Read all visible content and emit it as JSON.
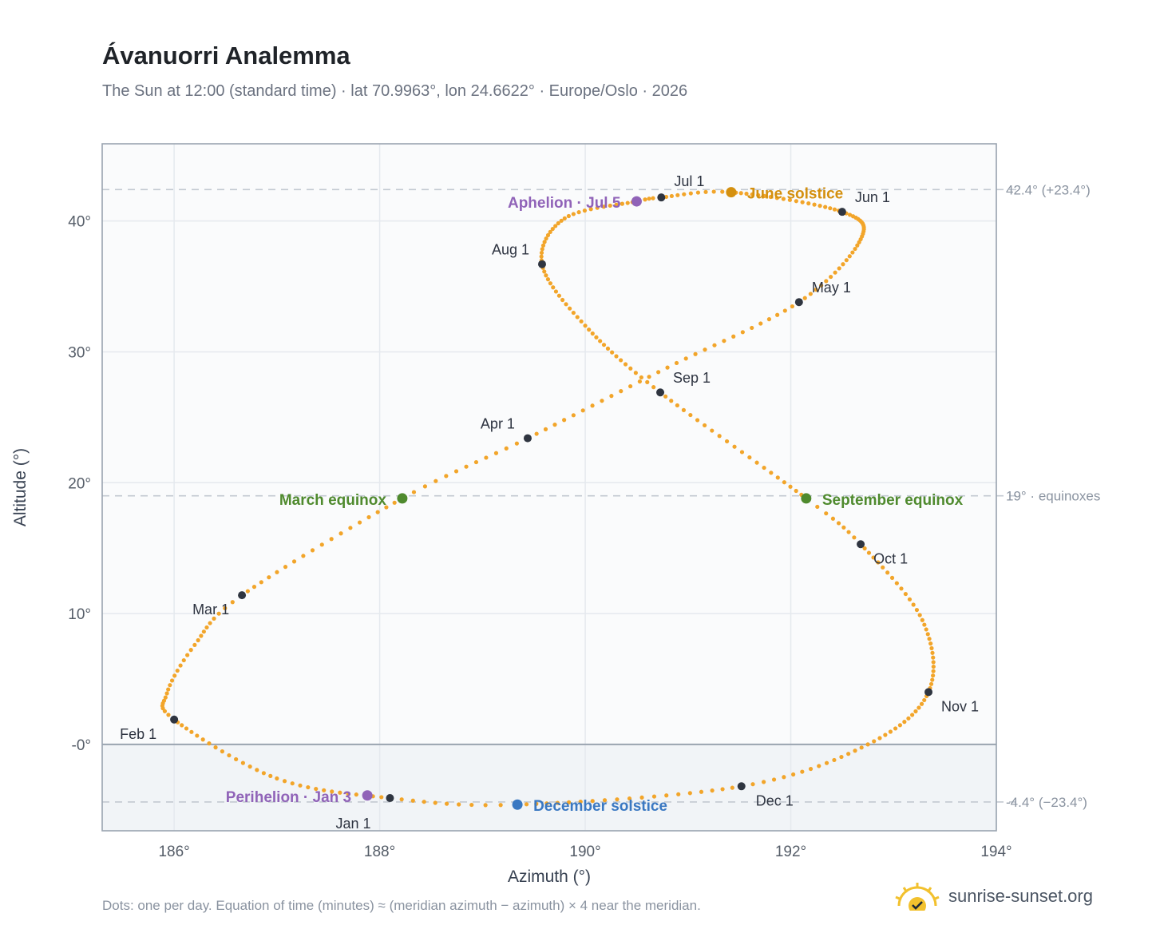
{
  "header": {
    "title": "Ávanuorri Analemma",
    "subtitle": "The Sun at 12:00 (standard time) · lat 70.9963°, lon 24.6622° · Europe/Oslo · 2026"
  },
  "footer": {
    "note": "Dots: one per day. Equation of time (minutes) ≈ (meridian azimuth − azimuth) × 4 near the meridian.",
    "brand": "sunrise-sunset.org"
  },
  "colors": {
    "path": "#f2a52a",
    "month_marker": "#2f3540",
    "solstice_june": "#d4900f",
    "solstice_december": "#3a78c2",
    "equinox": "#4f8a2e",
    "apsis": "#9063b8",
    "grid": "#e5e9ee",
    "frame": "#9aa4b0",
    "below_horizon_fill": "#f1f4f7",
    "plot_bg": "#fafbfc"
  },
  "chart_data": {
    "type": "scatter",
    "x_label": "Azimuth (°)",
    "y_label": "Altitude (°)",
    "xlim": [
      185.3,
      194
    ],
    "ylim": [
      -6.6,
      45.9
    ],
    "x_ticks": [
      186,
      188,
      190,
      192,
      194
    ],
    "x_tick_labels": [
      "186°",
      "188°",
      "190°",
      "192°",
      "194°"
    ],
    "y_ticks": [
      0,
      10,
      20,
      30,
      40
    ],
    "y_tick_labels": [
      "-0°",
      "10°",
      "20°",
      "30°",
      "40°"
    ],
    "grid": true,
    "horizon_altitude": 0,
    "reference_lines": [
      {
        "y": 42.4,
        "label": "42.4° (+23.4°)"
      },
      {
        "y": 19.0,
        "label": "19° · equinoxes"
      },
      {
        "y": -4.4,
        "label": "-4.4° (−23.4°)"
      }
    ],
    "month_markers": [
      {
        "label": "Jan 1",
        "az": 188.1,
        "alt": -4.1
      },
      {
        "label": "Feb 1",
        "az": 186.0,
        "alt": 1.9
      },
      {
        "label": "Mar 1",
        "az": 186.66,
        "alt": 11.4
      },
      {
        "label": "Apr 1",
        "az": 189.44,
        "alt": 23.4
      },
      {
        "label": "May 1",
        "az": 192.08,
        "alt": 33.8
      },
      {
        "label": "Jun 1",
        "az": 192.5,
        "alt": 40.7
      },
      {
        "label": "Jul 1",
        "az": 190.74,
        "alt": 41.8
      },
      {
        "label": "Aug 1",
        "az": 189.58,
        "alt": 36.7
      },
      {
        "label": "Sep 1",
        "az": 190.73,
        "alt": 26.9
      },
      {
        "label": "Oct 1",
        "az": 192.68,
        "alt": 15.3
      },
      {
        "label": "Nov 1",
        "az": 193.34,
        "alt": 4.0
      },
      {
        "label": "Dec 1",
        "az": 191.52,
        "alt": -3.2
      }
    ],
    "events": [
      {
        "label": "Perihelion · Jan 3",
        "az": 187.88,
        "alt": -3.9,
        "kind": "apsis"
      },
      {
        "label": "March equinox",
        "az": 188.22,
        "alt": 18.8,
        "kind": "equinox"
      },
      {
        "label": "June solstice",
        "az": 191.42,
        "alt": 42.2,
        "kind": "solstice_june"
      },
      {
        "label": "Aphelion · Jul 5",
        "az": 190.5,
        "alt": 41.5,
        "kind": "apsis"
      },
      {
        "label": "September equinox",
        "az": 192.15,
        "alt": 18.8,
        "kind": "equinox"
      },
      {
        "label": "December solstice",
        "az": 189.34,
        "alt": -4.6,
        "kind": "solstice_december"
      }
    ],
    "path_knots": [
      [
        1,
        188.1,
        -4.1
      ],
      [
        15,
        187.0,
        -2.6
      ],
      [
        32,
        186.0,
        1.9
      ],
      [
        40,
        185.93,
        3.9
      ],
      [
        50,
        186.2,
        7.6
      ],
      [
        60,
        186.66,
        11.4
      ],
      [
        79,
        188.22,
        18.8
      ],
      [
        91,
        189.44,
        23.4
      ],
      [
        106,
        190.8,
        28.8
      ],
      [
        121,
        192.08,
        33.8
      ],
      [
        137,
        192.68,
        38.6
      ],
      [
        152,
        192.5,
        40.7
      ],
      [
        172,
        191.42,
        42.2
      ],
      [
        182,
        190.74,
        41.8
      ],
      [
        186,
        190.5,
        41.5
      ],
      [
        199,
        189.8,
        40.2
      ],
      [
        213,
        189.58,
        36.7
      ],
      [
        228,
        190.0,
        32.0
      ],
      [
        244,
        190.73,
        26.9
      ],
      [
        266,
        192.15,
        18.8
      ],
      [
        274,
        192.68,
        15.3
      ],
      [
        289,
        193.28,
        9.5
      ],
      [
        305,
        193.34,
        4.0
      ],
      [
        320,
        192.75,
        0.0
      ],
      [
        335,
        191.52,
        -3.2
      ],
      [
        355,
        189.34,
        -4.6
      ],
      [
        365,
        188.1,
        -4.1
      ]
    ]
  }
}
